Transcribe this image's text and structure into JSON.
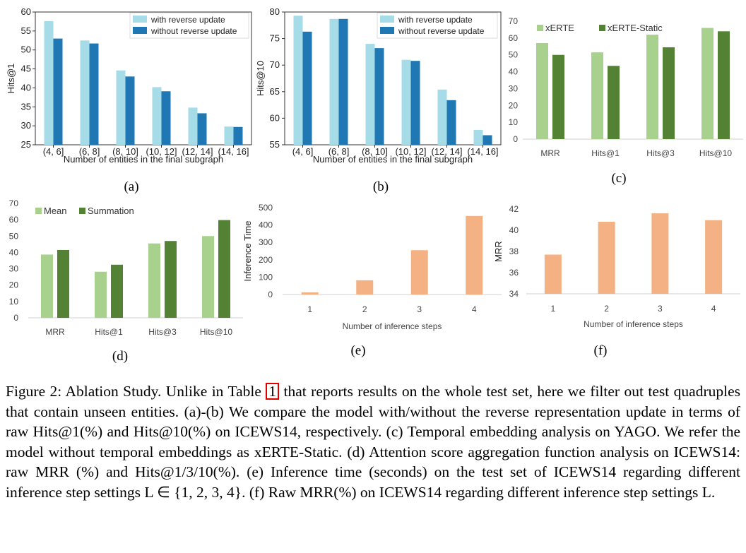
{
  "chart_data": [
    {
      "id": "a",
      "type": "bar",
      "panel_label": "(a)",
      "xlabel": "Number of entities in the final subgraph",
      "ylabel": "Hits@1",
      "categories": [
        "(4, 6]",
        "(6, 8]",
        "(8, 10]",
        "(10, 12]",
        "(12, 14]",
        "(14, 16]"
      ],
      "ylim": [
        25,
        60
      ],
      "yticks": [
        25,
        30,
        35,
        40,
        45,
        50,
        55,
        60
      ],
      "legend_position": "top-right",
      "series": [
        {
          "name": "with reverse update",
          "color": "#a6dbe8",
          "values": [
            57.6,
            52.5,
            44.6,
            40.2,
            34.8,
            29.8
          ]
        },
        {
          "name": "without reverse update",
          "color": "#1f77b4",
          "values": [
            53.0,
            51.7,
            43.0,
            39.1,
            33.3,
            29.7
          ]
        }
      ]
    },
    {
      "id": "b",
      "type": "bar",
      "panel_label": "(b)",
      "xlabel": "Number of entities in the final subgraph",
      "ylabel": "Hits@10",
      "categories": [
        "(4, 6]",
        "(6, 8]",
        "(8, 10]",
        "(10, 12]",
        "(12, 14]",
        "(14, 16]"
      ],
      "ylim": [
        55,
        80
      ],
      "yticks": [
        55,
        60,
        65,
        70,
        75,
        80
      ],
      "legend_position": "top-right",
      "series": [
        {
          "name": "with reverse update",
          "color": "#a6dbe8",
          "values": [
            79.3,
            78.7,
            74.0,
            71.0,
            65.4,
            57.8
          ]
        },
        {
          "name": "without reverse update",
          "color": "#1f77b4",
          "values": [
            76.3,
            78.7,
            73.2,
            70.8,
            63.4,
            56.8
          ]
        }
      ]
    },
    {
      "id": "c",
      "type": "bar",
      "panel_label": "(c)",
      "categories": [
        "MRR",
        "Hits@1",
        "Hits@3",
        "Hits@10"
      ],
      "ylim": [
        0,
        70
      ],
      "yticks": [
        0,
        10,
        20,
        30,
        40,
        50,
        60,
        70
      ],
      "legend_position": "top-left",
      "series": [
        {
          "name": "xERTE",
          "color": "#a9d18e",
          "values": [
            57.0,
            51.5,
            62.0,
            66.0
          ]
        },
        {
          "name": "xERTE-Static",
          "color": "#548235",
          "values": [
            50.0,
            43.5,
            54.5,
            64.0
          ]
        }
      ]
    },
    {
      "id": "d",
      "type": "bar",
      "panel_label": "(d)",
      "categories": [
        "MRR",
        "Hits@1",
        "Hits@3",
        "Hits@10"
      ],
      "ylim": [
        0,
        70
      ],
      "yticks": [
        0,
        10,
        20,
        30,
        40,
        50,
        60,
        70
      ],
      "legend_position": "top-left",
      "series": [
        {
          "name": "Mean",
          "color": "#a9d18e",
          "values": [
            38.7,
            28.2,
            45.5,
            50.0
          ]
        },
        {
          "name": "Summation",
          "color": "#548235",
          "values": [
            41.5,
            32.5,
            47.0,
            59.8
          ]
        }
      ]
    },
    {
      "id": "e",
      "type": "bar",
      "panel_label": "(e)",
      "xlabel": "Number of inference steps",
      "ylabel": "Inference Time",
      "categories": [
        "1",
        "2",
        "3",
        "4"
      ],
      "ylim": [
        0,
        500
      ],
      "yticks": [
        0,
        100,
        200,
        300,
        400,
        500
      ],
      "series": [
        {
          "color": "#f4b183",
          "values": [
            12,
            82,
            255,
            452
          ]
        }
      ]
    },
    {
      "id": "f",
      "type": "bar",
      "panel_label": "(f)",
      "xlabel": "Number of inference steps",
      "ylabel": "MRR",
      "categories": [
        "1",
        "2",
        "3",
        "4"
      ],
      "ylim": [
        34,
        42
      ],
      "yticks": [
        34,
        36,
        38,
        40,
        42
      ],
      "series": [
        {
          "color": "#f4b183",
          "values": [
            37.7,
            40.8,
            41.6,
            40.95
          ]
        }
      ]
    }
  ],
  "caption": {
    "prefix": "Figure 2: Ablation Study. Unlike in Table ",
    "table_ref": "1",
    "suffix": " that reports results on the whole test set, here we filter out test quadruples that contain unseen entities. (a)-(b) We compare the model with/without the reverse representation update in terms of raw Hits@1(%) and Hits@10(%) on ICEWS14, respectively. (c) Temporal embedding analysis on YAGO. We refer the model without temporal embeddings as xERTE-Static. (d) Attention score aggregation function analysis on ICEWS14: raw MRR (%) and Hits@1/3/10(%). (e) Inference time (seconds) on the test set of ICEWS14 regarding different inference step settings L ∈ {1, 2, 3, 4}. (f) Raw MRR(%) on ICEWS14 regarding different inference step settings L."
  }
}
